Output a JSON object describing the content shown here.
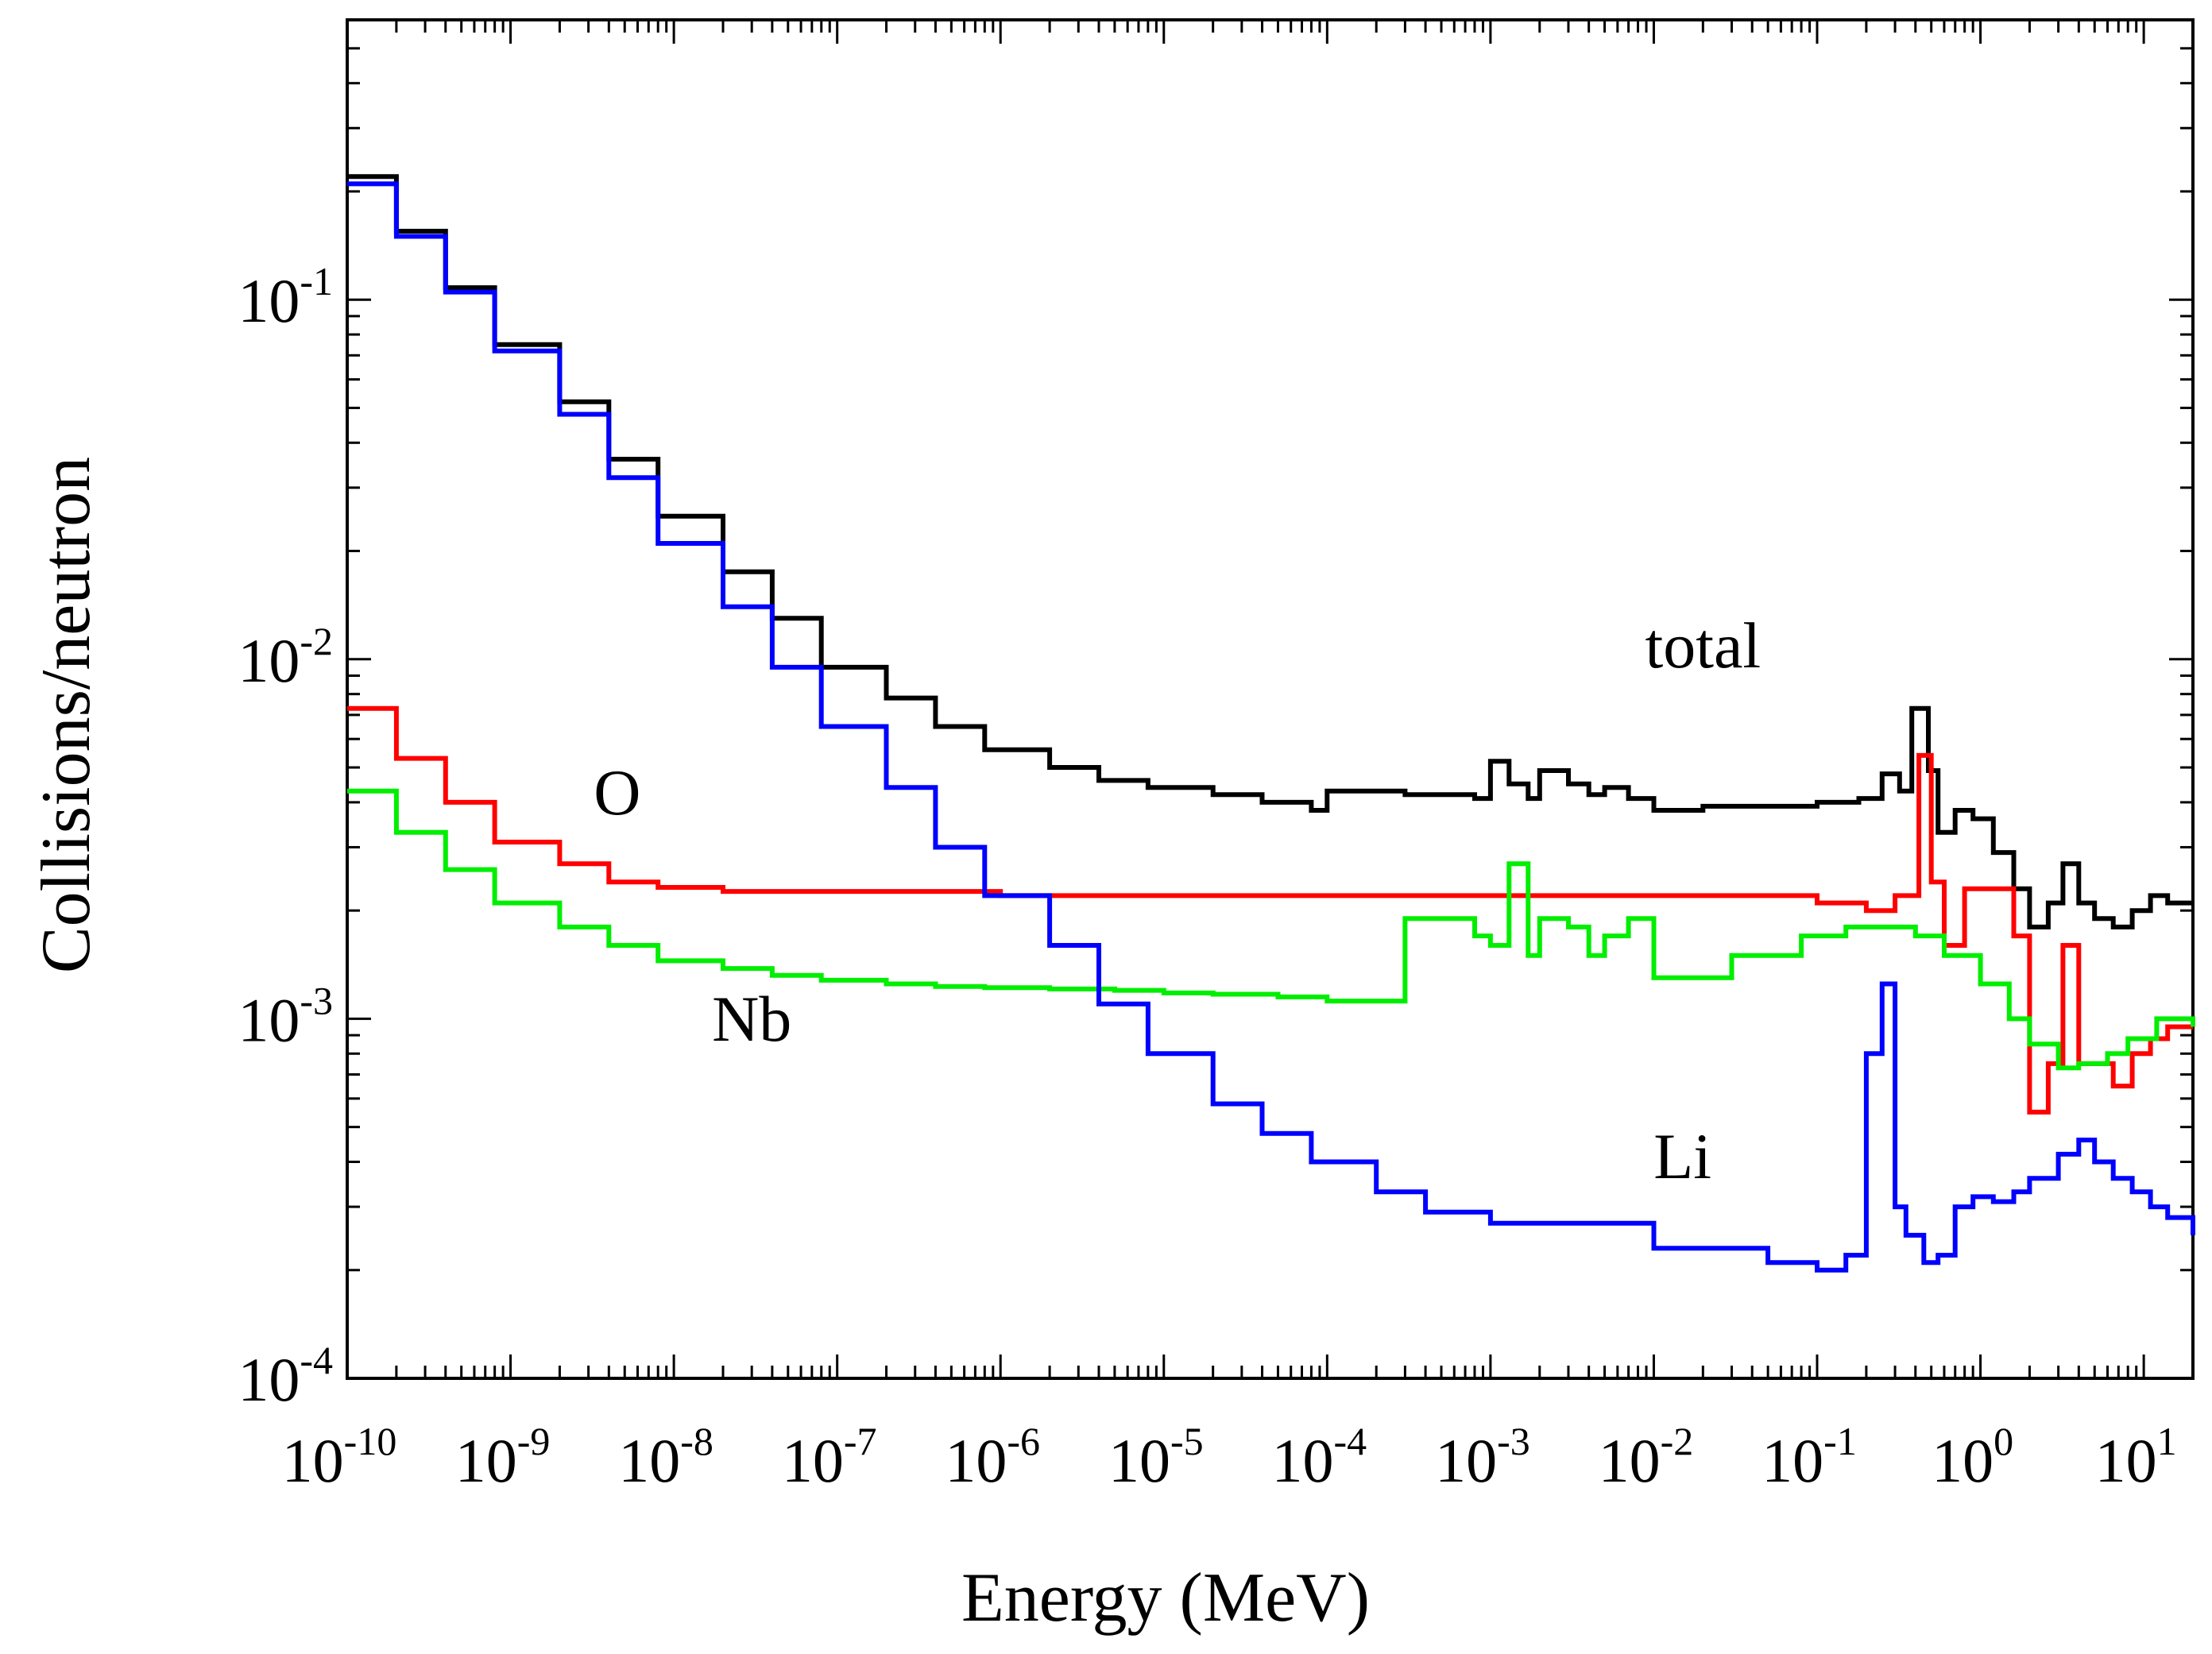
{
  "chart_data": {
    "type": "line",
    "step": true,
    "xlabel": "Energy (MeV)",
    "ylabel": "Collisions/neutron",
    "xscale": "log",
    "yscale": "log",
    "xlim": [
      1e-10,
      20
    ],
    "ylim": [
      0.0001,
      0.6
    ],
    "x_ticks": [
      {
        "base": "10",
        "exp": "-10",
        "value": 1e-10
      },
      {
        "base": "10",
        "exp": "-9",
        "value": 1e-09
      },
      {
        "base": "10",
        "exp": "-8",
        "value": 1e-08
      },
      {
        "base": "10",
        "exp": "-7",
        "value": 1e-07
      },
      {
        "base": "10",
        "exp": "-6",
        "value": 1e-06
      },
      {
        "base": "10",
        "exp": "-5",
        "value": 1e-05
      },
      {
        "base": "10",
        "exp": "-4",
        "value": 0.0001
      },
      {
        "base": "10",
        "exp": "-3",
        "value": 0.001
      },
      {
        "base": "10",
        "exp": "-2",
        "value": 0.01
      },
      {
        "base": "10",
        "exp": "-1",
        "value": 0.1
      },
      {
        "base": "10",
        "exp": "0",
        "value": 1
      },
      {
        "base": "10",
        "exp": "1",
        "value": 10
      }
    ],
    "y_ticks": [
      {
        "base": "10",
        "exp": "-4",
        "value": 0.0001
      },
      {
        "base": "10",
        "exp": "-3",
        "value": 0.001
      },
      {
        "base": "10",
        "exp": "-2",
        "value": 0.01
      },
      {
        "base": "10",
        "exp": "-1",
        "value": 0.1
      }
    ],
    "grid": false,
    "series": [
      {
        "name": "total",
        "color": "#000000",
        "x": [
          1e-10,
          2e-10,
          4e-10,
          8e-10,
          2e-09,
          4e-09,
          8e-09,
          2e-08,
          4e-08,
          8e-08,
          2e-07,
          4e-07,
          8e-07,
          2e-06,
          4e-06,
          8e-06,
          2e-05,
          4e-05,
          8e-05,
          0.0001,
          0.0003,
          0.0008,
          0.001,
          0.0013,
          0.0017,
          0.002,
          0.003,
          0.004,
          0.005,
          0.007,
          0.01,
          0.02,
          0.1,
          0.18,
          0.25,
          0.32,
          0.38,
          0.48,
          0.55,
          0.7,
          0.9,
          1.2,
          1.6,
          2,
          2.6,
          3.2,
          4,
          5,
          6.5,
          8.5,
          11,
          14,
          20
        ],
        "y": [
          0.22,
          0.155,
          0.108,
          0.075,
          0.052,
          0.036,
          0.025,
          0.0175,
          0.013,
          0.0095,
          0.0078,
          0.0065,
          0.0056,
          0.005,
          0.0046,
          0.0044,
          0.0042,
          0.004,
          0.0038,
          0.0043,
          0.0042,
          0.0041,
          0.0052,
          0.0045,
          0.0041,
          0.0049,
          0.0045,
          0.0042,
          0.0044,
          0.0041,
          0.0038,
          0.0039,
          0.004,
          0.0041,
          0.0048,
          0.0043,
          0.0073,
          0.0049,
          0.0033,
          0.0038,
          0.0036,
          0.0029,
          0.0023,
          0.0018,
          0.0021,
          0.0027,
          0.0021,
          0.0019,
          0.0018,
          0.002,
          0.0022,
          0.0021,
          0.0021
        ]
      },
      {
        "name": "O",
        "color": "#ff0000",
        "x": [
          1e-10,
          2e-10,
          4e-10,
          8e-10,
          2e-09,
          4e-09,
          8e-09,
          2e-08,
          1e-06,
          0.001,
          0.01,
          0.1,
          0.2,
          0.3,
          0.42,
          0.5,
          0.6,
          0.8,
          1.2,
          1.6,
          2,
          2.6,
          3.2,
          4,
          5,
          6.5,
          8.5,
          11,
          14,
          20
        ],
        "y": [
          0.0073,
          0.0053,
          0.004,
          0.0031,
          0.0027,
          0.0024,
          0.00232,
          0.00226,
          0.0022,
          0.0022,
          0.0022,
          0.0021,
          0.002,
          0.0022,
          0.0054,
          0.0024,
          0.0016,
          0.0023,
          0.0023,
          0.0017,
          0.00055,
          0.00075,
          0.0016,
          0.00075,
          0.00075,
          0.00065,
          0.0008,
          0.00088,
          0.00095,
          0.00095
        ]
      },
      {
        "name": "Nb",
        "color": "#00ee00",
        "x": [
          1e-10,
          2e-10,
          4e-10,
          8e-10,
          2e-09,
          4e-09,
          8e-09,
          2e-08,
          4e-08,
          8e-08,
          2e-07,
          4e-07,
          8e-07,
          2e-06,
          5e-06,
          1e-05,
          2e-05,
          5e-05,
          0.0001,
          0.0003,
          0.0008,
          0.001,
          0.0013,
          0.0017,
          0.002,
          0.003,
          0.004,
          0.005,
          0.007,
          0.01,
          0.03,
          0.08,
          0.15,
          0.25,
          0.4,
          0.6,
          1,
          1.5,
          2,
          3,
          4,
          6,
          8,
          12,
          20
        ],
        "y": [
          0.0043,
          0.0033,
          0.0026,
          0.0021,
          0.0018,
          0.0016,
          0.00145,
          0.00138,
          0.00132,
          0.00128,
          0.00125,
          0.00123,
          0.00122,
          0.00121,
          0.0012,
          0.00118,
          0.00117,
          0.00115,
          0.00112,
          0.0019,
          0.0017,
          0.0016,
          0.0027,
          0.0015,
          0.0019,
          0.0018,
          0.0015,
          0.0017,
          0.0019,
          0.0013,
          0.0015,
          0.0017,
          0.0018,
          0.0018,
          0.0017,
          0.0015,
          0.00125,
          0.001,
          0.00085,
          0.00073,
          0.00075,
          0.0008,
          0.00088,
          0.001,
          0.00095
        ]
      },
      {
        "name": "Li",
        "color": "#0000ff",
        "x": [
          1e-10,
          2e-10,
          4e-10,
          8e-10,
          2e-09,
          4e-09,
          8e-09,
          2e-08,
          4e-08,
          8e-08,
          2e-07,
          4e-07,
          8e-07,
          2e-06,
          4e-06,
          8e-06,
          2e-05,
          4e-05,
          8e-05,
          0.0002,
          0.0004,
          0.001,
          0.01,
          0.05,
          0.1,
          0.15,
          0.2,
          0.25,
          0.3,
          0.35,
          0.45,
          0.55,
          0.7,
          0.9,
          1.2,
          1.6,
          2,
          3,
          4,
          5,
          6.5,
          8.5,
          11,
          14,
          20
        ],
        "y": [
          0.21,
          0.15,
          0.105,
          0.072,
          0.048,
          0.032,
          0.021,
          0.014,
          0.0095,
          0.0065,
          0.0044,
          0.003,
          0.0022,
          0.0016,
          0.0011,
          0.0008,
          0.00058,
          0.00048,
          0.0004,
          0.00033,
          0.00029,
          0.00027,
          0.00023,
          0.00021,
          0.0002,
          0.00022,
          0.0008,
          0.00125,
          0.0003,
          0.00025,
          0.00021,
          0.00022,
          0.0003,
          0.00032,
          0.00031,
          0.00033,
          0.00036,
          0.00042,
          0.00046,
          0.0004,
          0.00036,
          0.00033,
          0.0003,
          0.00028,
          0.00025
        ]
      }
    ],
    "annotations": [
      {
        "text": "total",
        "x": 0.02,
        "y": 0.0095
      },
      {
        "text": "O",
        "x": 4.5e-09,
        "y": 0.0037
      },
      {
        "text": "Nb",
        "x": 3e-08,
        "y": 0.00087
      },
      {
        "text": "Li",
        "x": 0.015,
        "y": 0.00036
      }
    ]
  }
}
